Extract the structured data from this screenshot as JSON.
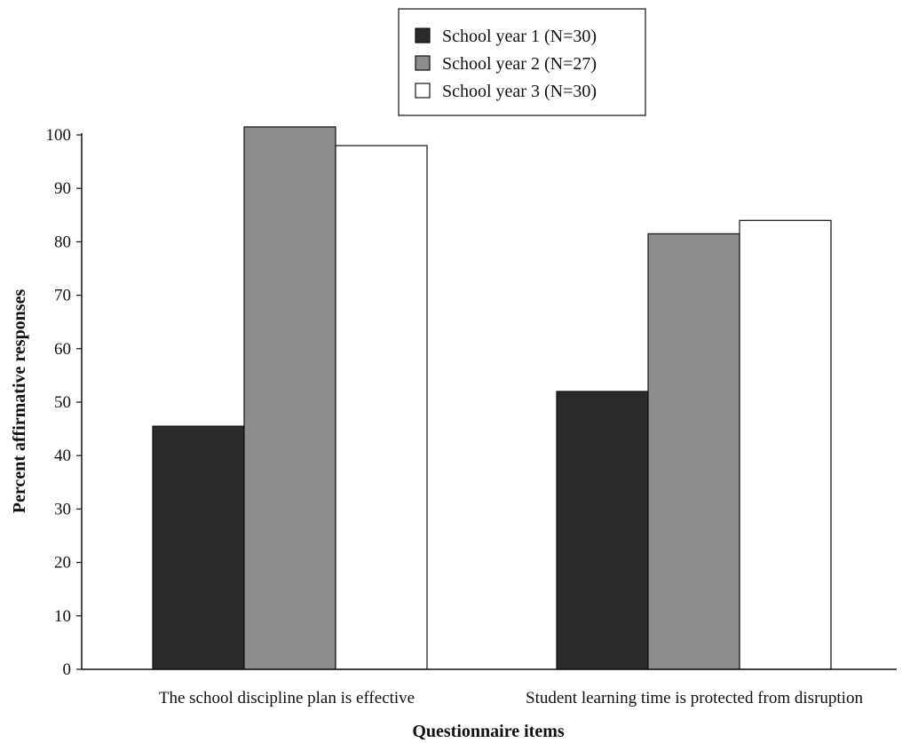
{
  "chart_data": {
    "type": "bar",
    "title": "",
    "xlabel": "Questionnaire items",
    "ylabel": "Percent affirmative responses",
    "ylim": [
      0,
      100
    ],
    "yticks": [
      0,
      10,
      20,
      30,
      40,
      50,
      60,
      70,
      80,
      90,
      100
    ],
    "grid": false,
    "legend_position": "top-center",
    "categories": [
      "The school discipline plan is effective",
      "Student learning time is protected from disruption"
    ],
    "series": [
      {
        "name": "School year 1 (N=30)",
        "color": "#2a2a2a",
        "values": [
          45.5,
          52
        ]
      },
      {
        "name": "School year 2 (N=27)",
        "color": "#8c8c8c",
        "values": [
          101.5,
          81.5
        ]
      },
      {
        "name": "School year 3 (N=30)",
        "color": "#ffffff",
        "values": [
          98,
          84
        ]
      }
    ]
  }
}
